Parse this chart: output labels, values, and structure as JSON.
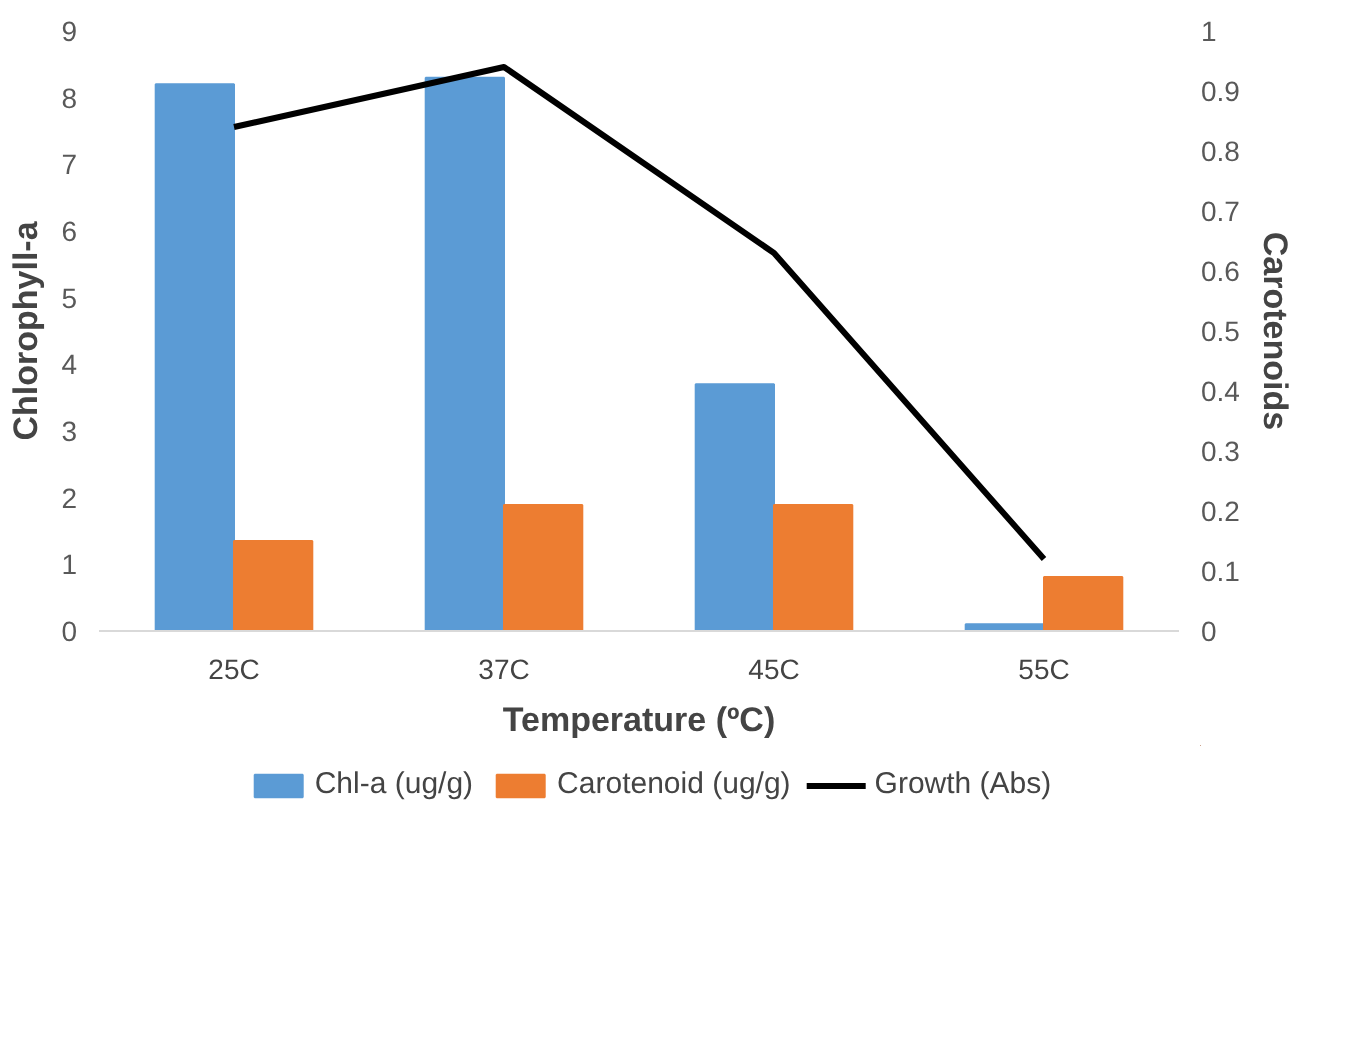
{
  "chart_data": {
    "type": "bar",
    "xlabel": "Temperature (ºC)",
    "ylabel": "Chlorophyll-a",
    "y2label": "Carotenoids",
    "categories": [
      "25C",
      "37C",
      "45C",
      "55C"
    ],
    "series": [
      {
        "name": "Chl-a (ug/g)",
        "color": "#5b9bd5",
        "values": [
          8.2,
          8.3,
          3.7,
          0.1
        ]
      },
      {
        "name": "Carotenoid (ug/g)",
        "color": "#ed7d31",
        "values": [
          0.15,
          0.21,
          0.21,
          0.09
        ],
        "axis": "y2"
      },
      {
        "name": "Growth (Abs)",
        "color": "#000000",
        "type": "line",
        "values": [
          0.84,
          0.94,
          0.63,
          0.12
        ],
        "axis": "y2"
      }
    ],
    "ylim": [
      0,
      9
    ],
    "yticks": [
      0,
      1,
      2,
      3,
      4,
      5,
      6,
      7,
      8,
      9
    ],
    "y2lim": [
      0,
      1
    ],
    "y2ticks": [
      0,
      0.1,
      0.2,
      0.3,
      0.4,
      0.5,
      0.6,
      0.7,
      0.8,
      0.9,
      1
    ],
    "grid": false,
    "legend": "bottom"
  }
}
